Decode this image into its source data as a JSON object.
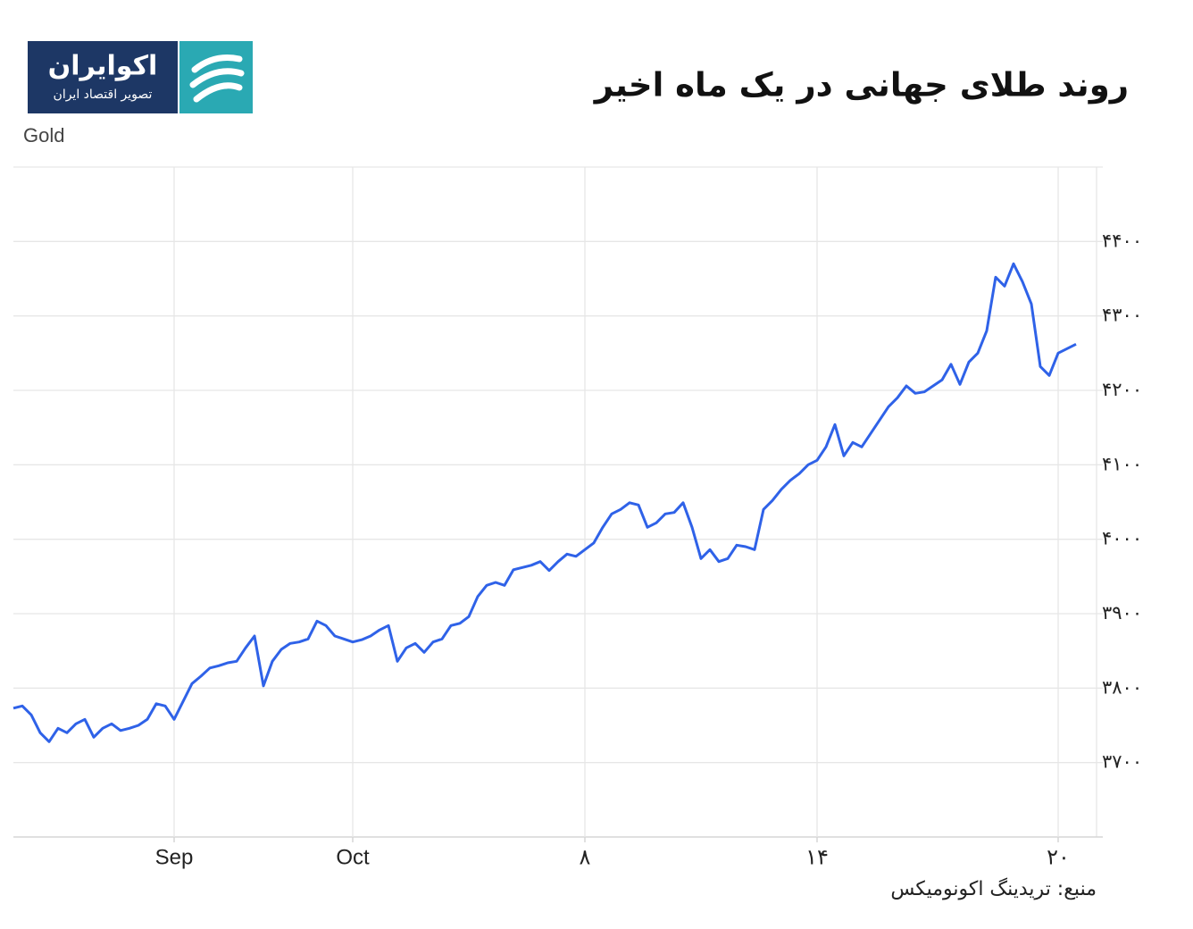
{
  "logo": {
    "name": "اکوایران",
    "tagline": "تصویر اقتصاد ایران"
  },
  "source": "منبع: تریدینگ اکونومیکس",
  "chart_data": {
    "type": "line",
    "title": "روند طلای جهانی در یک ماه اخیر",
    "ylabel": "Gold",
    "color": "#2f62e8",
    "grid": true,
    "values": [
      3773,
      3776,
      3764,
      3740,
      3728,
      3746,
      3740,
      3752,
      3758,
      3734,
      3746,
      3752,
      3743,
      3746,
      3750,
      3758,
      3779,
      3776,
      3758,
      3782,
      3806,
      3816,
      3827,
      3830,
      3834,
      3836,
      3854,
      3870,
      3803,
      3836,
      3852,
      3860,
      3862,
      3866,
      3890,
      3884,
      3870,
      3866,
      3862,
      3865,
      3870,
      3878,
      3884,
      3836,
      3854,
      3860,
      3848,
      3862,
      3866,
      3884,
      3887,
      3896,
      3923,
      3938,
      3942,
      3938,
      3959,
      3962,
      3965,
      3970,
      3958,
      3970,
      3980,
      3977,
      3986,
      3995,
      4016,
      4034,
      4040,
      4049,
      4046,
      4016,
      4022,
      4034,
      4036,
      4049,
      4016,
      3974,
      3986,
      3970,
      3974,
      3992,
      3990,
      3986,
      4040,
      4052,
      4067,
      4079,
      4088,
      4100,
      4106,
      4124,
      4154,
      4112,
      4130,
      4124,
      4142,
      4160,
      4178,
      4190,
      4206,
      4196,
      4198,
      4206,
      4214,
      4235,
      4208,
      4238,
      4250,
      4280,
      4352,
      4340,
      4370,
      4346,
      4316,
      4232,
      4220,
      4250,
      4256,
      4262
    ],
    "xlim": [
      0,
      121.3
    ],
    "xticks": [
      {
        "value": 18,
        "label": "Sep"
      },
      {
        "value": 38,
        "label": "Oct"
      },
      {
        "value": 64,
        "label": "۸"
      },
      {
        "value": 90,
        "label": "۱۴"
      },
      {
        "value": 117,
        "label": "۲۰"
      }
    ],
    "ylim": [
      3600,
      4500
    ],
    "yticks": [
      {
        "value": 3700,
        "label": "۳۷۰۰"
      },
      {
        "value": 3800,
        "label": "۳۸۰۰"
      },
      {
        "value": 3900,
        "label": "۳۹۰۰"
      },
      {
        "value": 4000,
        "label": "۴۰۰۰"
      },
      {
        "value": 4100,
        "label": "۴۱۰۰"
      },
      {
        "value": 4200,
        "label": "۴۲۰۰"
      },
      {
        "value": 4300,
        "label": "۴۳۰۰"
      },
      {
        "value": 4400,
        "label": "۴۴۰۰"
      }
    ]
  }
}
